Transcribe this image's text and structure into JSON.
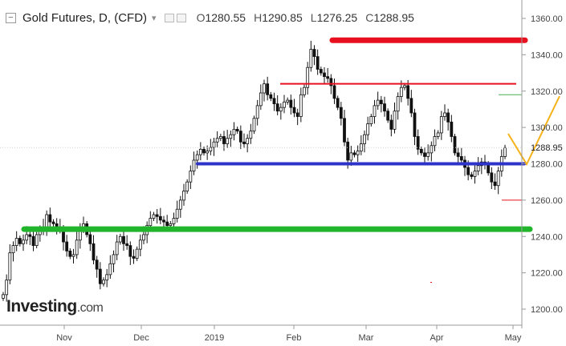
{
  "header": {
    "collapse_symbol": "−",
    "title": "Gold Futures, D, (CFD)",
    "dropdown_symbol": "▾",
    "open_label": "O",
    "open_value": "1280.55",
    "high_label": "H",
    "high_value": "1290.85",
    "low_label": "L",
    "low_value": "1276.25",
    "close_label": "C",
    "close_value": "1288.95"
  },
  "logo": {
    "name": "Investing",
    "suffix": ".com"
  },
  "chart_data": {
    "type": "candlestick",
    "y_axis": {
      "side": "right",
      "ylim": [
        1193,
        1367
      ],
      "ticks": [
        "1200.00",
        "1220.00",
        "1240.00",
        "1260.00",
        "1280.00",
        "1300.00",
        "1320.00",
        "1340.00",
        "1360.00"
      ]
    },
    "x_axis": {
      "ticks": [
        "Nov",
        "Dec",
        "2019",
        "Feb",
        "Mar",
        "Apr",
        "May"
      ]
    },
    "last_price": "1288.95",
    "grid": false,
    "closes": [
      1208,
      1216,
      1231,
      1235,
      1239,
      1236,
      1238,
      1241,
      1240,
      1235,
      1241,
      1243,
      1245,
      1252,
      1248,
      1247,
      1245,
      1244,
      1237,
      1232,
      1229,
      1230,
      1238,
      1245,
      1247,
      1241,
      1236,
      1227,
      1222,
      1214,
      1216,
      1219,
      1225,
      1230,
      1237,
      1240,
      1236,
      1235,
      1229,
      1228,
      1233,
      1238,
      1241,
      1246,
      1250,
      1252,
      1251,
      1249,
      1248,
      1246,
      1247,
      1250,
      1255,
      1260,
      1265,
      1270,
      1276,
      1282,
      1285,
      1288,
      1286,
      1287,
      1289,
      1292,
      1294,
      1295,
      1291,
      1294,
      1296,
      1299,
      1298,
      1292,
      1291,
      1294,
      1298,
      1305,
      1312,
      1319,
      1324,
      1318,
      1316,
      1313,
      1309,
      1311,
      1314,
      1315,
      1311,
      1308,
      1306,
      1318,
      1322,
      1333,
      1343,
      1339,
      1332,
      1330,
      1328,
      1327,
      1323,
      1316,
      1311,
      1305,
      1292,
      1282,
      1286,
      1285,
      1287,
      1291,
      1296,
      1302,
      1306,
      1312,
      1315,
      1313,
      1309,
      1304,
      1299,
      1309,
      1317,
      1322,
      1323,
      1316,
      1308,
      1295,
      1288,
      1286,
      1284,
      1286,
      1290,
      1295,
      1297,
      1306,
      1308,
      1303,
      1295,
      1286,
      1284,
      1282,
      1278,
      1274,
      1273,
      1276,
      1279,
      1281,
      1280,
      1275,
      1270,
      1268,
      1276,
      1284,
      1288.95
    ],
    "annotations": [
      {
        "type": "horizontal_line",
        "color": "#e8101e",
        "level": 1348
      },
      {
        "type": "horizontal_line",
        "color": "#e8101e",
        "level": 1324
      },
      {
        "type": "horizontal_line",
        "color": "#2d32c8",
        "level": 1280
      },
      {
        "type": "horizontal_line",
        "color": "#20b52b",
        "level": 1244
      },
      {
        "type": "marker_line",
        "color": "#4caf50",
        "level": 1318
      },
      {
        "type": "marker_line",
        "color": "#e8101e",
        "level": 1260
      },
      {
        "type": "projection_arrow",
        "color": "#f5b21b"
      }
    ]
  },
  "colors": {
    "candle": "#000000",
    "red_line": "#e8101e",
    "blue_line": "#2d32c8",
    "green_line": "#20b52b",
    "arrow": "#f5b21b"
  }
}
